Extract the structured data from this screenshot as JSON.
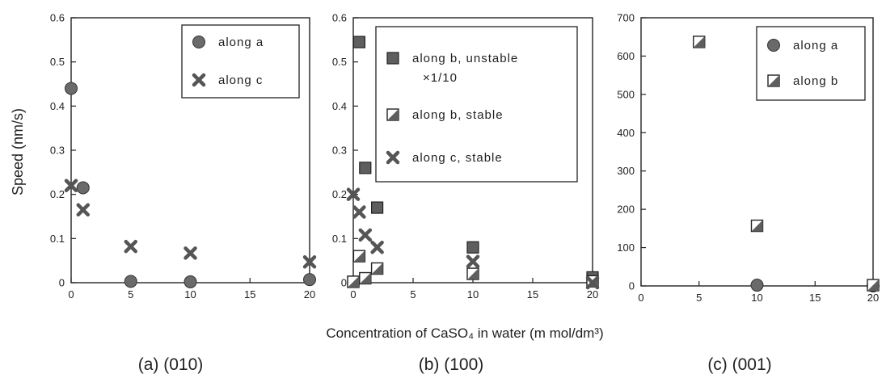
{
  "chart_data": {
    "ylabel": "Speed (nm/s)",
    "xlabel": "Concentration of CaSO₄ in water (m mol/dm³)",
    "panels": [
      {
        "type": "scatter",
        "label": "(a) (010)",
        "xlim": [
          0,
          20
        ],
        "ylim": [
          0,
          0.6
        ],
        "xticks": [
          0,
          5,
          10,
          15,
          20
        ],
        "yticks": [
          0,
          0.1,
          0.2,
          0.3,
          0.4,
          0.5,
          0.6
        ],
        "ytick_labels": [
          "0",
          "0.1",
          "0.2",
          "0.3",
          "0.4",
          "0.5",
          "0.6"
        ],
        "legend_position": "top-right",
        "series": [
          {
            "name": "along a",
            "marker": "circle",
            "x": [
              0,
              1,
              5,
              10,
              20
            ],
            "y": [
              0.44,
              0.215,
              0.003,
              0.002,
              0.007
            ]
          },
          {
            "name": "along c",
            "marker": "x",
            "x": [
              0,
              1,
              5,
              10,
              20
            ],
            "y": [
              0.22,
              0.165,
              0.082,
              0.067,
              0.047
            ]
          }
        ]
      },
      {
        "type": "scatter",
        "label": "(b) (100)",
        "xlim": [
          0,
          20
        ],
        "ylim": [
          0,
          0.6
        ],
        "xticks": [
          0,
          5,
          10,
          15,
          20
        ],
        "yticks": [
          0,
          0.1,
          0.2,
          0.3,
          0.4,
          0.5,
          0.6
        ],
        "ytick_labels": [
          "0",
          "0.1",
          "0.2",
          "0.3",
          "0.4",
          "0.5",
          "0.6"
        ],
        "legend_position": "top-right",
        "series": [
          {
            "name": "along b, unstable",
            "name_line2": "×1/10",
            "marker": "filled-square",
            "x": [
              0,
              0.5,
              1,
              2,
              10,
              20
            ],
            "y": [
              0.002,
              0.545,
              0.26,
              0.17,
              0.08,
              0.012
            ]
          },
          {
            "name": "along b, stable",
            "marker": "half-square",
            "x": [
              0,
              0.5,
              1,
              2,
              10,
              20
            ],
            "y": [
              0.002,
              0.06,
              0.01,
              0.032,
              0.02,
              0.003
            ]
          },
          {
            "name": "along c, stable",
            "marker": "x",
            "x": [
              0,
              0.5,
              1,
              2,
              10,
              20
            ],
            "y": [
              0.2,
              0.16,
              0.108,
              0.08,
              0.048,
              0.0
            ]
          }
        ]
      },
      {
        "type": "scatter",
        "label": "(c) (001)",
        "xlim": [
          0,
          20
        ],
        "ylim": [
          0,
          700
        ],
        "xticks": [
          0,
          5,
          10,
          15,
          20
        ],
        "yticks": [
          0,
          100,
          200,
          300,
          400,
          500,
          600,
          700
        ],
        "ytick_labels": [
          "0",
          "100",
          "200",
          "300",
          "400",
          "500",
          "600",
          "700"
        ],
        "legend_position": "top-right",
        "series": [
          {
            "name": "along a",
            "marker": "circle",
            "x": [
              10,
              20
            ],
            "y": [
              2,
              0
            ]
          },
          {
            "name": "along b",
            "marker": "half-square",
            "x": [
              5,
              10,
              20
            ],
            "y": [
              637,
              157,
              2
            ]
          }
        ]
      }
    ]
  }
}
